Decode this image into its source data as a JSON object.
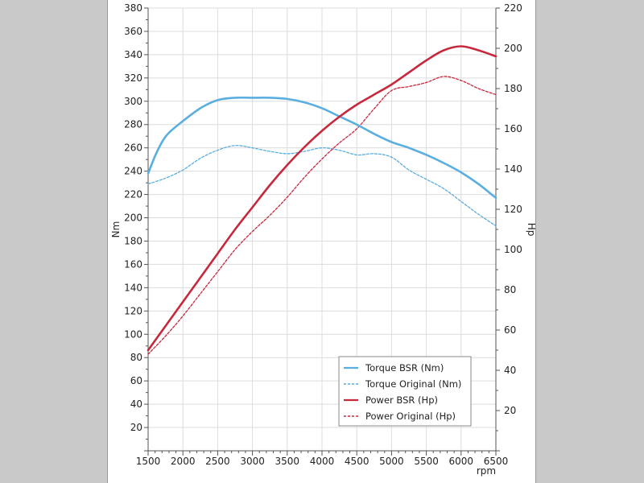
{
  "chart_data": {
    "type": "line",
    "x_label": "rpm",
    "y_left_label": "Nm",
    "y_right_label": "Hp",
    "x_range": [
      1500,
      6500
    ],
    "x_ticks": [
      1500,
      2000,
      2500,
      3000,
      3500,
      4000,
      4500,
      5000,
      5500,
      6000,
      6500
    ],
    "y_left_range": [
      0,
      380
    ],
    "y_left_ticks": [
      20,
      40,
      60,
      80,
      100,
      120,
      140,
      160,
      180,
      200,
      220,
      240,
      260,
      280,
      300,
      320,
      340,
      360,
      380
    ],
    "y_right_range": [
      0,
      220
    ],
    "y_right_ticks": [
      20,
      40,
      60,
      80,
      100,
      120,
      140,
      160,
      180,
      200,
      220
    ],
    "grid": true,
    "legend_position": "bottom-right",
    "series": [
      {
        "name": "Torque BSR (Nm)",
        "axis": "left",
        "color": "#5aaee0",
        "style": "solid",
        "x": [
          1500,
          1600,
          1700,
          1800,
          2000,
          2250,
          2500,
          2750,
          3000,
          3250,
          3500,
          3750,
          4000,
          4250,
          4500,
          4750,
          5000,
          5250,
          5500,
          5750,
          6000,
          6250,
          6500
        ],
        "y": [
          238,
          253,
          265,
          273,
          283,
          294,
          301,
          303,
          303,
          303,
          302,
          299,
          294,
          287,
          280,
          272,
          265,
          260,
          254,
          247,
          239,
          229,
          217
        ]
      },
      {
        "name": "Torque Original (Nm)",
        "axis": "left",
        "color": "#5aaee0",
        "style": "dashed",
        "x": [
          1500,
          1750,
          2000,
          2250,
          2500,
          2750,
          3000,
          3250,
          3500,
          3750,
          4000,
          4250,
          4500,
          4750,
          5000,
          5250,
          5500,
          5750,
          6000,
          6250,
          6500
        ],
        "y": [
          229,
          234,
          241,
          251,
          258,
          262,
          260,
          257,
          255,
          257,
          260,
          258,
          254,
          255,
          252,
          241,
          233,
          225,
          214,
          203,
          193
        ]
      },
      {
        "name": "Power BSR (Hp)",
        "axis": "right",
        "color": "#c8283c",
        "style": "solid",
        "x": [
          1500,
          1750,
          2000,
          2250,
          2500,
          2750,
          3000,
          3250,
          3500,
          3750,
          4000,
          4250,
          4500,
          4750,
          5000,
          5250,
          5500,
          5750,
          6000,
          6250,
          6500
        ],
        "y": [
          50,
          62,
          74,
          86,
          98,
          110,
          121,
          132,
          142,
          151,
          159,
          166,
          172,
          177,
          182,
          188,
          194,
          199,
          201,
          199,
          196
        ]
      },
      {
        "name": "Power Original (Hp)",
        "axis": "right",
        "color": "#c8283c",
        "style": "dashed",
        "x": [
          1500,
          1750,
          2000,
          2250,
          2500,
          2750,
          3000,
          3250,
          3500,
          3750,
          4000,
          4250,
          4500,
          4750,
          5000,
          5250,
          5500,
          5750,
          6000,
          6250,
          6500
        ],
        "y": [
          48,
          57,
          67,
          78,
          89,
          100,
          109,
          117,
          126,
          136,
          145,
          153,
          160,
          170,
          179,
          181,
          183,
          186,
          184,
          180,
          177
        ]
      }
    ]
  }
}
